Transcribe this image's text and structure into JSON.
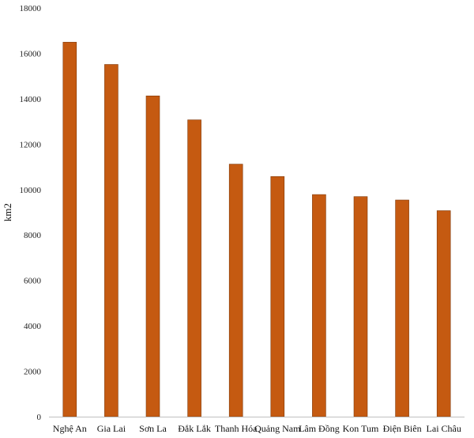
{
  "chart_data": {
    "type": "bar",
    "title": "",
    "xlabel": "",
    "ylabel": "km2",
    "ylim": [
      0,
      18000
    ],
    "yticks": [
      0,
      2000,
      4000,
      6000,
      8000,
      10000,
      12000,
      14000,
      16000,
      18000
    ],
    "grid": false,
    "legend": "none",
    "bar_color": "#c55a11",
    "bar_edge_color": "#7f3a0b",
    "categories": [
      "Nghệ An",
      "Gia Lai",
      "Sơn La",
      "Đắk Lắk",
      "Thanh Hóa",
      "Quảng Nam",
      "Lâm Đồng",
      "Kon Tum",
      "Điện Biên",
      "Lai Châu"
    ],
    "values": [
      16490,
      15510,
      14125,
      13070,
      11120,
      10575,
      9780,
      9690,
      9540,
      9070
    ]
  }
}
